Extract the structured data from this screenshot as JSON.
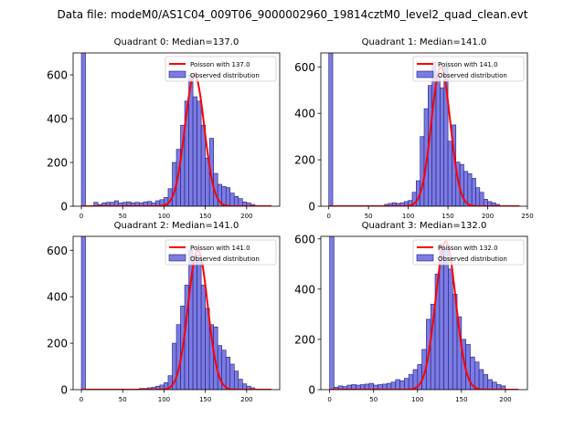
{
  "figure_title": "Data file: modeM0/AS1C04_009T06_9000002960_19814cztM0_level2_quad_clean.evt",
  "colors": {
    "bar_fill": "#7b7be3",
    "bar_edge": "#1f1f7a",
    "poisson_line": "#ff0000",
    "axes": "#000000"
  },
  "chart_data": [
    {
      "type": "bar",
      "title": "Quadrant 0: Median=137.0",
      "xlim": [
        -10,
        240
      ],
      "ylim": [
        0,
        700
      ],
      "xticks": [
        0,
        50,
        100,
        150,
        200
      ],
      "yticks": [
        0,
        200,
        400,
        600
      ],
      "bin_width": 5,
      "bins": [
        [
          0,
          700
        ],
        [
          15,
          18
        ],
        [
          20,
          8
        ],
        [
          25,
          15
        ],
        [
          30,
          18
        ],
        [
          35,
          18
        ],
        [
          40,
          25
        ],
        [
          45,
          15
        ],
        [
          50,
          18
        ],
        [
          55,
          20
        ],
        [
          60,
          15
        ],
        [
          65,
          18
        ],
        [
          70,
          15
        ],
        [
          75,
          20
        ],
        [
          80,
          22
        ],
        [
          85,
          15
        ],
        [
          90,
          25
        ],
        [
          95,
          30
        ],
        [
          100,
          40
        ],
        [
          105,
          80
        ],
        [
          110,
          200
        ],
        [
          115,
          260
        ],
        [
          120,
          370
        ],
        [
          125,
          480
        ],
        [
          130,
          600
        ],
        [
          135,
          500
        ],
        [
          140,
          480
        ],
        [
          145,
          370
        ],
        [
          150,
          220
        ],
        [
          155,
          310
        ],
        [
          160,
          150
        ],
        [
          165,
          100
        ],
        [
          170,
          90
        ],
        [
          175,
          85
        ],
        [
          180,
          60
        ],
        [
          185,
          45
        ],
        [
          190,
          35
        ],
        [
          195,
          20
        ],
        [
          200,
          15
        ],
        [
          205,
          8
        ]
      ],
      "poisson": {
        "label": "Poisson with 137.0",
        "mean": 137,
        "peak": 600
      },
      "legend": {
        "observed": "Observed distribution"
      }
    },
    {
      "type": "bar",
      "title": "Quadrant 1: Median=141.0",
      "xlim": [
        -10,
        250
      ],
      "ylim": [
        0,
        660
      ],
      "xticks": [
        0,
        50,
        100,
        150,
        200,
        250
      ],
      "yticks": [
        0,
        200,
        400,
        600
      ],
      "bin_width": 5,
      "bins": [
        [
          0,
          660
        ],
        [
          70,
          8
        ],
        [
          75,
          12
        ],
        [
          80,
          15
        ],
        [
          85,
          12
        ],
        [
          90,
          15
        ],
        [
          95,
          20
        ],
        [
          100,
          25
        ],
        [
          105,
          60
        ],
        [
          110,
          110
        ],
        [
          115,
          300
        ],
        [
          120,
          420
        ],
        [
          125,
          520
        ],
        [
          130,
          620
        ],
        [
          135,
          560
        ],
        [
          140,
          510
        ],
        [
          145,
          600
        ],
        [
          150,
          280
        ],
        [
          155,
          350
        ],
        [
          160,
          190
        ],
        [
          165,
          180
        ],
        [
          170,
          150
        ],
        [
          175,
          140
        ],
        [
          180,
          120
        ],
        [
          185,
          80
        ],
        [
          190,
          60
        ],
        [
          195,
          30
        ],
        [
          200,
          20
        ],
        [
          205,
          15
        ],
        [
          210,
          8
        ]
      ],
      "poisson": {
        "label": "Poisson with 141.0",
        "mean": 141,
        "peak": 600
      },
      "legend": {
        "observed": "Observed distribution"
      }
    },
    {
      "type": "bar",
      "title": "Quadrant 2: Median=141.0",
      "xlim": [
        -10,
        240
      ],
      "ylim": [
        0,
        660
      ],
      "xticks": [
        0,
        50,
        100,
        150,
        200
      ],
      "yticks": [
        0,
        200,
        400,
        600
      ],
      "bin_width": 5,
      "bins": [
        [
          0,
          660
        ],
        [
          70,
          5
        ],
        [
          75,
          5
        ],
        [
          80,
          8
        ],
        [
          85,
          10
        ],
        [
          90,
          15
        ],
        [
          95,
          20
        ],
        [
          100,
          30
        ],
        [
          105,
          60
        ],
        [
          110,
          200
        ],
        [
          115,
          280
        ],
        [
          120,
          360
        ],
        [
          125,
          450
        ],
        [
          130,
          600
        ],
        [
          135,
          550
        ],
        [
          140,
          580
        ],
        [
          145,
          450
        ],
        [
          150,
          350
        ],
        [
          155,
          280
        ],
        [
          160,
          270
        ],
        [
          165,
          190
        ],
        [
          170,
          170
        ],
        [
          175,
          140
        ],
        [
          180,
          110
        ],
        [
          185,
          80
        ],
        [
          190,
          45
        ],
        [
          195,
          25
        ],
        [
          200,
          15
        ],
        [
          205,
          8
        ]
      ],
      "poisson": {
        "label": "Poisson with 141.0",
        "mean": 141,
        "peak": 600
      },
      "legend": {
        "observed": "Observed distribution"
      }
    },
    {
      "type": "bar",
      "title": "Quadrant 3: Median=132.0",
      "xlim": [
        -10,
        225
      ],
      "ylim": [
        0,
        610
      ],
      "xticks": [
        0,
        50,
        100,
        150,
        200
      ],
      "yticks": [
        0,
        200,
        400,
        600
      ],
      "bin_width": 5,
      "bins": [
        [
          0,
          610
        ],
        [
          5,
          10
        ],
        [
          10,
          15
        ],
        [
          15,
          12
        ],
        [
          20,
          18
        ],
        [
          25,
          20
        ],
        [
          30,
          18
        ],
        [
          35,
          20
        ],
        [
          40,
          22
        ],
        [
          45,
          25
        ],
        [
          50,
          18
        ],
        [
          55,
          20
        ],
        [
          60,
          22
        ],
        [
          65,
          25
        ],
        [
          70,
          30
        ],
        [
          75,
          40
        ],
        [
          80,
          35
        ],
        [
          85,
          45
        ],
        [
          90,
          60
        ],
        [
          95,
          80
        ],
        [
          100,
          100
        ],
        [
          105,
          160
        ],
        [
          110,
          280
        ],
        [
          115,
          340
        ],
        [
          120,
          460
        ],
        [
          125,
          580
        ],
        [
          130,
          560
        ],
        [
          135,
          480
        ],
        [
          140,
          380
        ],
        [
          145,
          290
        ],
        [
          150,
          200
        ],
        [
          155,
          180
        ],
        [
          160,
          130
        ],
        [
          165,
          110
        ],
        [
          170,
          80
        ],
        [
          175,
          60
        ],
        [
          180,
          40
        ],
        [
          185,
          30
        ],
        [
          190,
          20
        ],
        [
          195,
          15
        ]
      ],
      "poisson": {
        "label": "Poisson with 132.0",
        "mean": 132,
        "peak": 590
      },
      "legend": {
        "observed": "Observed distribution"
      }
    }
  ]
}
